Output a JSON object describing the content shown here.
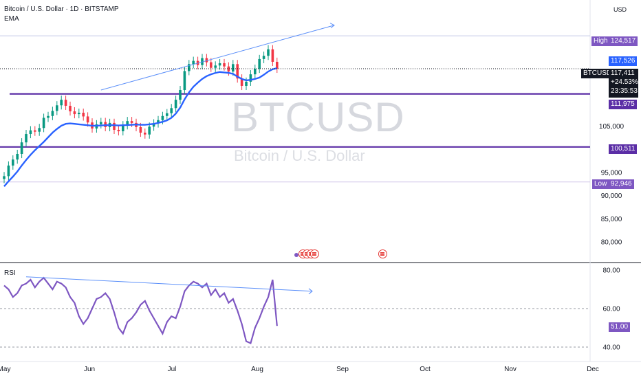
{
  "header": {
    "title": "Bitcoin / U.S. Dollar · 1D · BITSTAMP",
    "indicator": "EMA",
    "currency": "USD"
  },
  "watermark": {
    "symbol": "BTCUSD",
    "name": "Bitcoin / U.S. Dollar"
  },
  "price_tags": {
    "high_label": "High",
    "high_value": "124,517",
    "ema_value": "117,526",
    "symbol": "BTCUSD",
    "last_price": "117,411",
    "change": "+24.53%",
    "countdown": "23:35:53",
    "level_upper": "111,975",
    "level_lower": "100,511",
    "low_label": "Low",
    "low_value": "92,946"
  },
  "rsi": {
    "label": "RSI",
    "value": "51.00"
  },
  "chart_data": [
    {
      "type": "candlestick",
      "title": "Bitcoin / U.S. Dollar · 1D · BITSTAMP",
      "y_ticks": [
        {
          "value": 80000,
          "label": "80,000"
        },
        {
          "value": 85000,
          "label": "85,000"
        },
        {
          "value": 90000,
          "label": "90,000"
        },
        {
          "value": 95000,
          "label": "95,000"
        },
        {
          "value": 105000,
          "label": "105,000"
        }
      ],
      "x_ticks": [
        {
          "date": "2025-05-01",
          "label": "May"
        },
        {
          "date": "2025-06-01",
          "label": "Jun"
        },
        {
          "date": "2025-07-01",
          "label": "Jul"
        },
        {
          "date": "2025-08-01",
          "label": "Aug"
        },
        {
          "date": "2025-09-01",
          "label": "Sep"
        },
        {
          "date": "2025-10-01",
          "label": "Oct"
        },
        {
          "date": "2025-11-01",
          "label": "Nov"
        },
        {
          "date": "2025-12-01",
          "label": "Dec"
        }
      ],
      "close": [
        94200,
        96500,
        97800,
        99000,
        101500,
        103300,
        104100,
        103800,
        104600,
        106800,
        107200,
        108300,
        109500,
        110700,
        109400,
        108200,
        107600,
        107900,
        107100,
        105800,
        104500,
        105400,
        105900,
        104800,
        105700,
        104200,
        103900,
        105200,
        106100,
        105700,
        104800,
        103600,
        103200,
        104900,
        105600,
        106300,
        107200,
        107800,
        108900,
        110700,
        112800,
        116900,
        118400,
        119100,
        118200,
        119700,
        118800,
        117600,
        118100,
        118600,
        117900,
        116800,
        118400,
        115300,
        113700,
        114600,
        116200,
        117400,
        119500,
        120200,
        121600,
        118900,
        117411
      ],
      "ema": [
        92000,
        93100,
        94100,
        95200,
        96500,
        97700,
        98800,
        99800,
        100700,
        101600,
        102600,
        103600,
        104400,
        105100,
        105500,
        105600,
        105500,
        105400,
        105300,
        105200,
        105100,
        105100,
        105150,
        105200,
        105250,
        105200,
        105150,
        105200,
        105250,
        105300,
        105350,
        105300,
        105300,
        105400,
        105500,
        105700,
        105950,
        106250,
        106800,
        107700,
        109000,
        110800,
        112300,
        113500,
        114400,
        115200,
        115800,
        116200,
        116500,
        116700,
        116600,
        116500,
        116300,
        115700,
        115200,
        114900,
        115000,
        115200,
        115500,
        116100,
        116800,
        117300,
        117526
      ],
      "horizontal_levels": [
        111975,
        100511
      ],
      "high": 124517,
      "low": 92946,
      "last": 117411,
      "change_pct": 24.53
    },
    {
      "type": "line",
      "title": "RSI",
      "y_ticks": [
        40,
        60,
        80
      ],
      "y_tick_labels": [
        "40.00",
        "60.00",
        "80.00"
      ],
      "values": [
        72,
        70,
        66,
        68,
        72,
        73,
        75,
        71,
        74,
        76,
        73,
        70,
        74,
        73,
        71,
        66,
        63,
        56,
        52,
        55,
        60,
        65,
        66,
        68,
        65,
        58,
        50,
        47,
        53,
        55,
        58,
        62,
        64,
        59,
        55,
        51,
        47,
        53,
        56,
        55,
        61,
        69,
        72,
        74,
        73,
        71,
        73,
        67,
        70,
        66,
        68,
        63,
        65,
        59,
        52,
        43,
        42,
        50,
        55,
        61,
        66,
        75,
        51
      ],
      "last": 51.0
    }
  ]
}
